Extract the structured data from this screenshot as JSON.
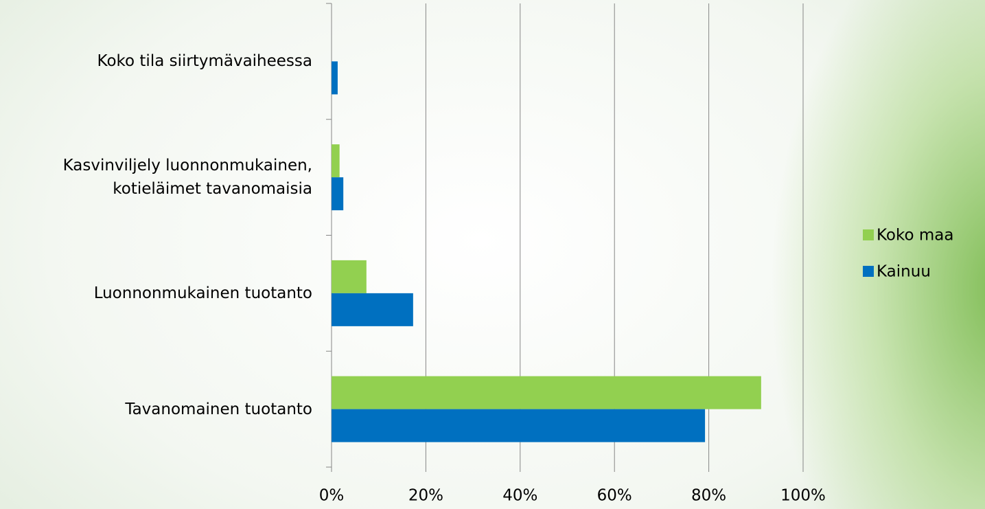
{
  "chart_data": {
    "type": "hbar",
    "categories": [
      "Koko tila siirtymävaiheessa",
      "Kasvinviljely luonnonmukainen, kotieläimet tavanomaisia",
      "Luonnonmukainen tuotanto",
      "Tavanomainen tuotanto"
    ],
    "series": [
      {
        "name": "Koko maa",
        "color": "#92d050",
        "values": [
          0,
          1.7,
          7.4,
          91.1
        ]
      },
      {
        "name": "Kainuu",
        "color": "#0070c0",
        "values": [
          1.3,
          2.5,
          17.3,
          79.2
        ]
      }
    ],
    "xlim": [
      0,
      100
    ],
    "xticks": [
      {
        "value": 0,
        "label": "0%"
      },
      {
        "value": 20,
        "label": "20%"
      },
      {
        "value": 40,
        "label": "40%"
      },
      {
        "value": 60,
        "label": "60%"
      },
      {
        "value": 80,
        "label": "80%"
      },
      {
        "value": 100,
        "label": "100%"
      }
    ],
    "grid": true,
    "legend": "right"
  }
}
